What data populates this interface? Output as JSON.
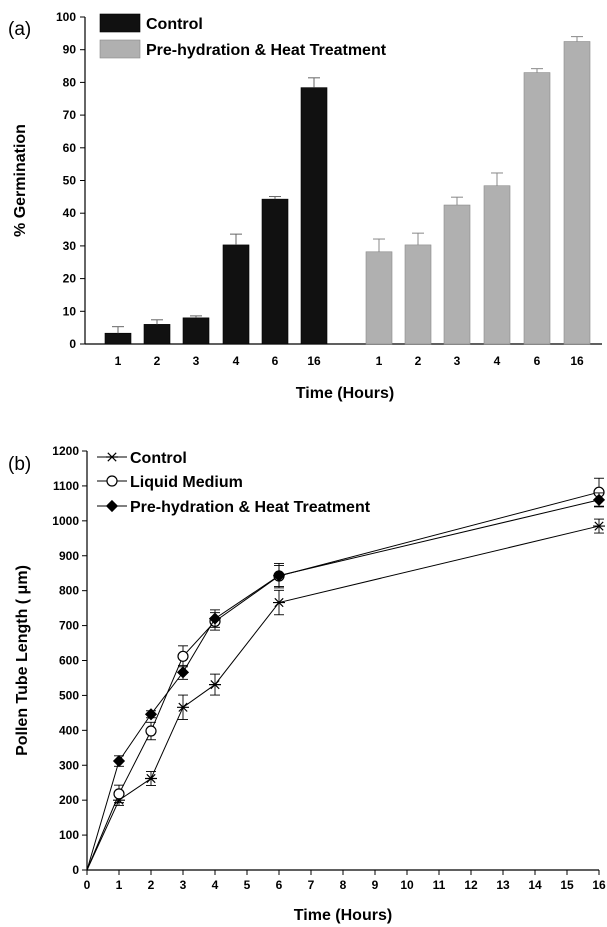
{
  "chart_data": [
    {
      "panel_label": "(a)",
      "type": "bar",
      "groups": [
        {
          "name": "Control",
          "categories": [
            "1",
            "2",
            "3",
            "4",
            "6",
            "16"
          ],
          "values": [
            3.3,
            6.0,
            8.0,
            30.3,
            44.3,
            78.4
          ],
          "errors": [
            2.0,
            1.4,
            0.6,
            3.3,
            0.8,
            3.0
          ],
          "color": "#111111"
        },
        {
          "name": "Pre-hydration & Heat Treatment",
          "categories": [
            "1",
            "2",
            "3",
            "4",
            "6",
            "16"
          ],
          "values": [
            28.2,
            30.3,
            42.5,
            48.4,
            83.0,
            92.5
          ],
          "errors": [
            3.9,
            3.6,
            2.4,
            3.9,
            1.2,
            1.5
          ],
          "color": "#b0b0b0"
        }
      ],
      "xlabel": "Time (Hours)",
      "ylabel": "% Germination",
      "ylim": [
        0,
        100
      ],
      "yticks": [
        0,
        10,
        20,
        30,
        40,
        50,
        60,
        70,
        80,
        90,
        100
      ],
      "legend_position": "top-left"
    },
    {
      "panel_label": "(b)",
      "type": "line",
      "series": [
        {
          "name": "Control",
          "marker": "star",
          "x": [
            0,
            1,
            2,
            3,
            4,
            6,
            16
          ],
          "y": [
            0,
            200,
            262,
            466,
            531,
            766,
            985
          ],
          "errors": [
            0,
            15,
            20,
            35,
            30,
            35,
            20
          ]
        },
        {
          "name": "Liquid Medium",
          "marker": "open-circle",
          "x": [
            0,
            1,
            2,
            3,
            4,
            6,
            16
          ],
          "y": [
            0,
            218,
            398,
            612,
            712,
            842,
            1082
          ],
          "errors": [
            0,
            25,
            25,
            30,
            25,
            30,
            40
          ]
        },
        {
          "name": "Pre-hydration & Heat Treatment",
          "marker": "filled-diamond",
          "x": [
            0,
            1,
            2,
            3,
            4,
            6,
            16
          ],
          "y": [
            0,
            312,
            446,
            566,
            720,
            843,
            1060
          ],
          "errors": [
            0,
            15,
            10,
            20,
            25,
            35,
            20
          ]
        }
      ],
      "xlabel": "Time (Hours)",
      "ylabel": "Pollen Tube Length ( μm)",
      "xlim": [
        0,
        16
      ],
      "ylim": [
        0,
        1200
      ],
      "xticks": [
        0,
        1,
        2,
        3,
        4,
        5,
        6,
        7,
        8,
        9,
        10,
        11,
        12,
        13,
        14,
        15,
        16
      ],
      "yticks": [
        0,
        100,
        200,
        300,
        400,
        500,
        600,
        700,
        800,
        900,
        1000,
        1100,
        1200
      ],
      "legend_position": "top-left"
    }
  ]
}
